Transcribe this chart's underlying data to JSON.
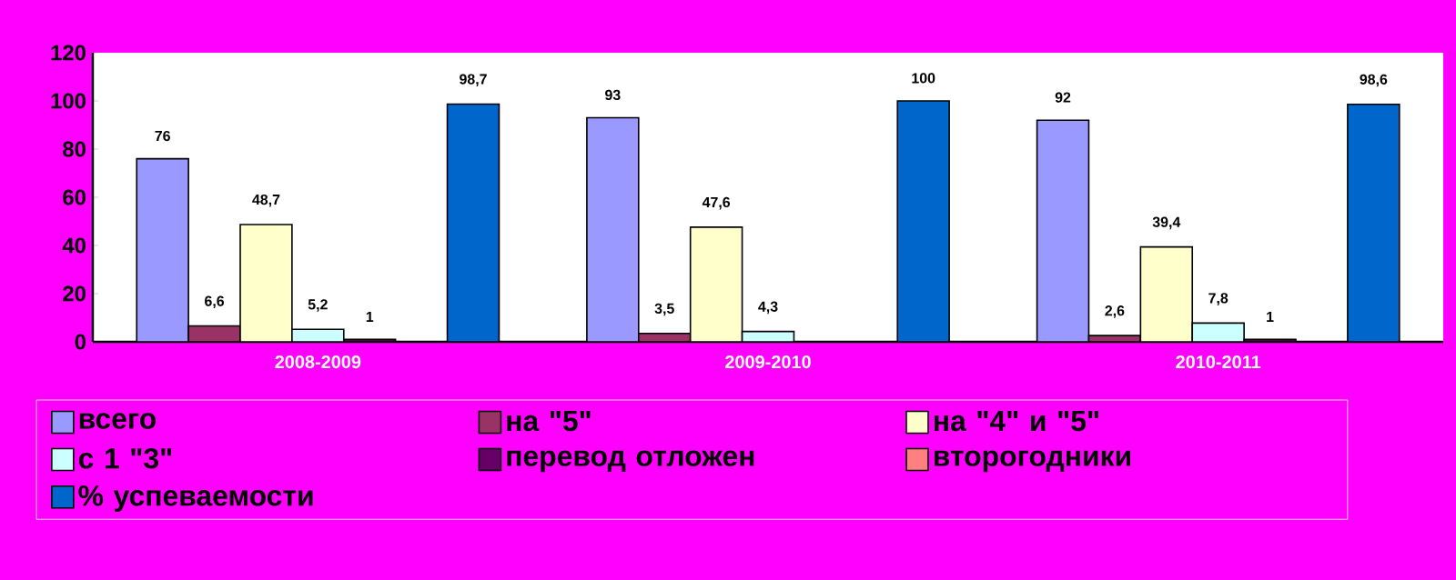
{
  "chart_data": {
    "type": "bar",
    "categories": [
      "2008-2009",
      "2009-2010",
      "2010-2011"
    ],
    "series": [
      {
        "name": "всего",
        "color": "#9999ff",
        "values": [
          76,
          93,
          92
        ],
        "value_labels": [
          "76",
          "93",
          "92"
        ]
      },
      {
        "name": "на \"5\"",
        "color": "#993366",
        "values": [
          6.6,
          3.5,
          2.6
        ],
        "value_labels": [
          "6,6",
          "3,5",
          "2,6"
        ]
      },
      {
        "name": "на \"4\" и \"5\"",
        "color": "#ffffcc",
        "values": [
          48.7,
          47.6,
          39.4
        ],
        "value_labels": [
          "48,7",
          "47,6",
          "39,4"
        ]
      },
      {
        "name": "с 1 \"3\"",
        "color": "#ccffff",
        "values": [
          5.2,
          4.3,
          7.8
        ],
        "value_labels": [
          "5,2",
          "4,3",
          "7,8"
        ]
      },
      {
        "name": "перевод отложен",
        "color": "#660066",
        "values": [
          1,
          null,
          1
        ],
        "value_labels": [
          "1",
          null,
          "1"
        ]
      },
      {
        "name": "второгодники",
        "color": "#ff8080",
        "values": [
          null,
          null,
          null
        ],
        "value_labels": [
          null,
          null,
          null
        ]
      },
      {
        "name": "% успеваемости",
        "color": "#0066cc",
        "values": [
          98.7,
          100,
          98.6
        ],
        "value_labels": [
          "98,7",
          "100",
          "98,6"
        ]
      }
    ],
    "ylim": [
      0,
      120
    ],
    "yticks": [
      0,
      20,
      40,
      60,
      80,
      100,
      120
    ],
    "legend": "bottom"
  }
}
